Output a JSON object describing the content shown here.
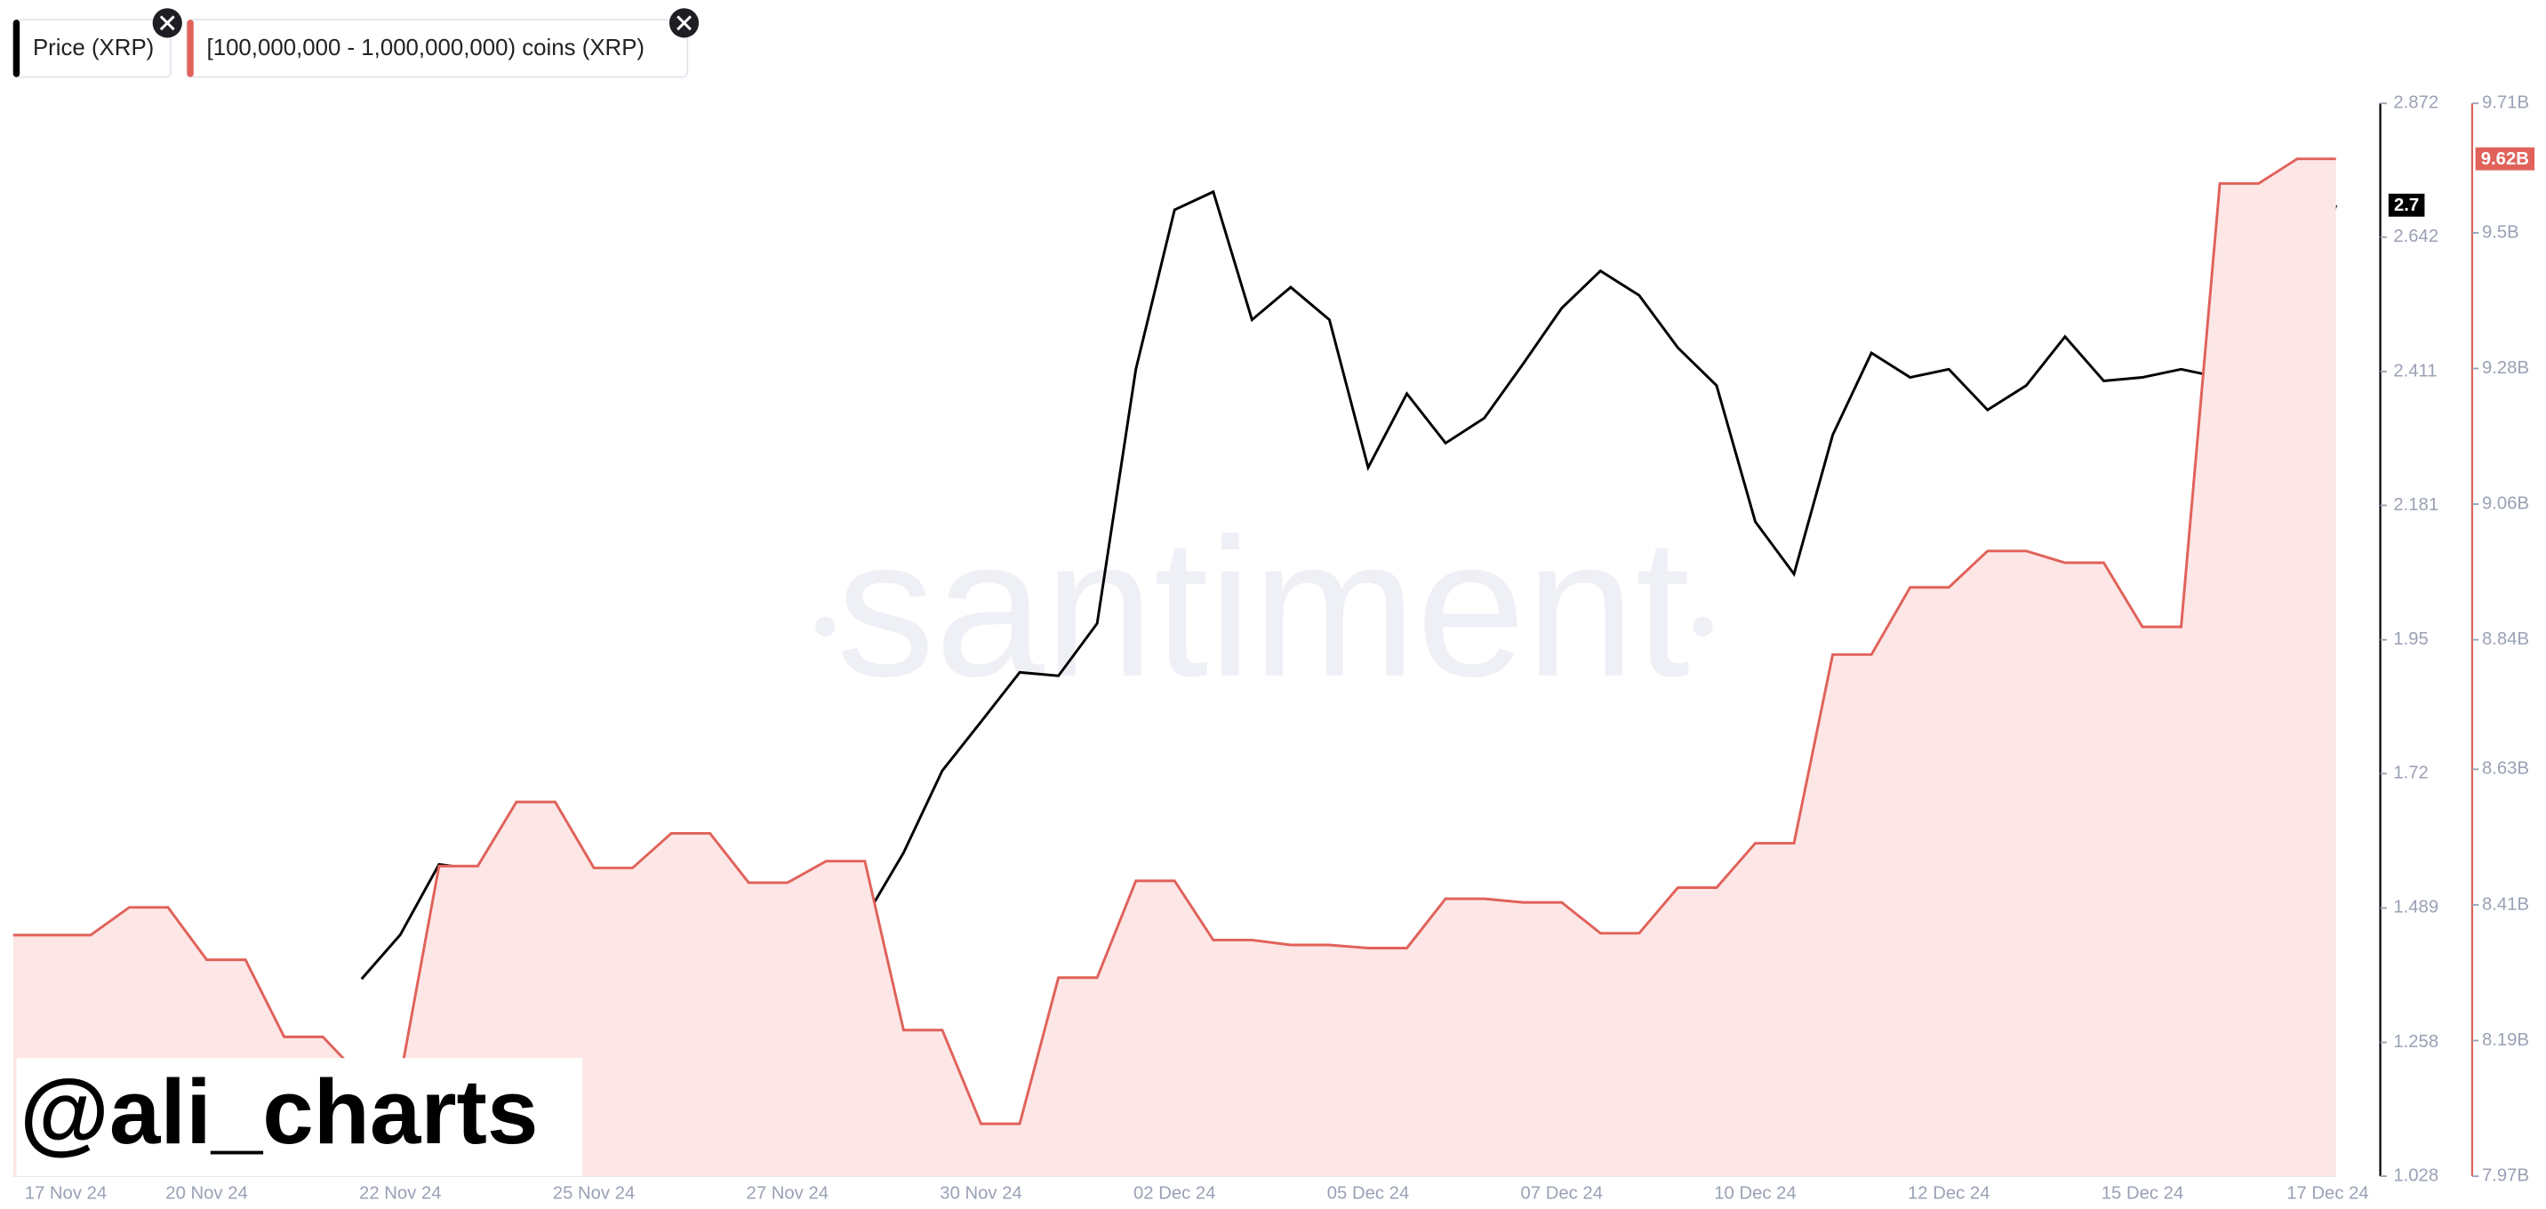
{
  "chart_data": {
    "type": "line",
    "watermark": "santiment",
    "overlay_text": "@ali_charts",
    "categories": [
      "17 Nov 24",
      null,
      null,
      null,
      null,
      "20 Nov 24",
      null,
      null,
      null,
      null,
      "22 Nov 24",
      null,
      null,
      null,
      null,
      "25 Nov 24",
      null,
      null,
      null,
      null,
      "27 Nov 24",
      null,
      null,
      null,
      null,
      "30 Nov 24",
      null,
      null,
      null,
      null,
      "02 Dec 24",
      null,
      null,
      null,
      null,
      "05 Dec 24",
      null,
      null,
      null,
      null,
      "07 Dec 24",
      null,
      null,
      null,
      null,
      "10 Dec 24",
      null,
      null,
      null,
      null,
      "12 Dec 24",
      null,
      null,
      null,
      null,
      "15 Dec 24",
      null,
      null,
      null,
      null,
      "17 Dec 24"
    ],
    "series": [
      {
        "name": "Price (XRP)",
        "color": "#000000",
        "last_label": "2.7",
        "values": [
          null,
          null,
          null,
          null,
          null,
          null,
          null,
          null,
          null,
          1.367,
          1.443,
          1.564,
          1.555,
          1.471,
          1.324,
          1.414,
          1.471,
          1.443,
          1.358,
          1.372,
          1.485,
          1.462,
          1.471,
          1.584,
          1.725,
          1.809,
          1.894,
          1.888,
          1.978,
          2.415,
          2.689,
          2.72,
          2.5,
          2.556,
          2.5,
          2.246,
          2.373,
          2.288,
          2.331,
          2.424,
          2.52,
          2.584,
          2.542,
          2.452,
          2.387,
          2.153,
          2.063,
          2.302,
          2.443,
          2.401,
          2.415,
          2.345,
          2.387,
          2.471,
          2.395,
          2.401,
          2.415,
          2.401,
          2.401,
          2.5,
          2.697
        ]
      },
      {
        "name": "[100,000,000 - 1,000,000,000) coins (XRP)",
        "color": "#e0625a",
        "fill": "#fde6e6",
        "axis": "y2",
        "last_label": "9.62B",
        "values": [
          8361000000,
          8361000000,
          8361000000,
          8406000000,
          8406000000,
          8321000000,
          8321000000,
          8196000000,
          8196000000,
          8130000000,
          8130000000,
          8473000000,
          8473000000,
          8577000000,
          8577000000,
          8470000000,
          8470000000,
          8526000000,
          8526000000,
          8446000000,
          8446000000,
          8481000000,
          8481000000,
          8207000000,
          8207000000,
          8055000000,
          8055000000,
          8292000000,
          8292000000,
          8449000000,
          8449000000,
          8353000000,
          8353000000,
          8345000000,
          8345000000,
          8340000000,
          8340000000,
          8420000000,
          8420000000,
          8414000000,
          8414000000,
          8364000000,
          8364000000,
          8438000000,
          8438000000,
          8510000000,
          8510000000,
          8816000000,
          8816000000,
          8925000000,
          8925000000,
          8984000000,
          8984000000,
          8965000000,
          8965000000,
          8861000000,
          8861000000,
          9580000000,
          9580000000,
          9620000000,
          9620000000
        ]
      }
    ],
    "ylim": [
      1.028,
      2.872
    ],
    "yticks": [
      1.028,
      1.258,
      1.489,
      1.72,
      1.95,
      2.181,
      2.411,
      2.642,
      2.872
    ],
    "y2lim": [
      7970000000,
      9710000000
    ],
    "y2ticks": [
      {
        "value": 7970000000,
        "label": "7.97B"
      },
      {
        "value": 8190000000,
        "label": "8.19B"
      },
      {
        "value": 8410000000,
        "label": "8.41B"
      },
      {
        "value": 8630000000,
        "label": "8.63B"
      },
      {
        "value": 8840000000,
        "label": "8.84B"
      },
      {
        "value": 9060000000,
        "label": "9.06B"
      },
      {
        "value": 9280000000,
        "label": "9.28B"
      },
      {
        "value": 9500000000,
        "label": "9.5B"
      },
      {
        "value": 9710000000,
        "label": "9.71B"
      }
    ],
    "grid": false
  }
}
